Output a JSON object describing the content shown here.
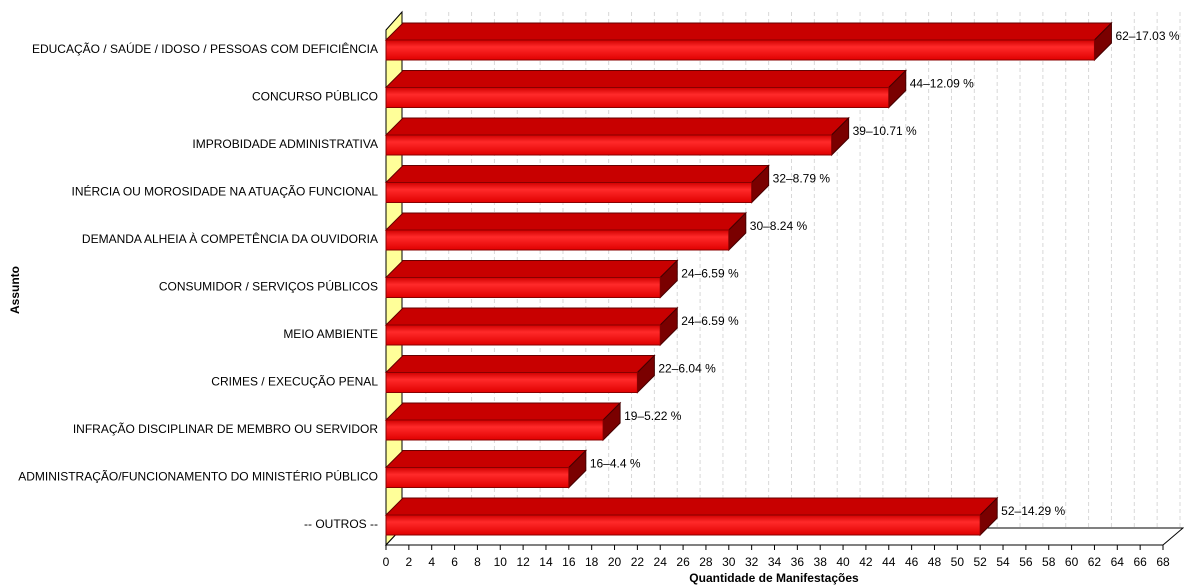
{
  "chart_data": {
    "type": "bar3d-horizontal",
    "y_label": "Assunto",
    "x_label": "Quantidade de Manifestações",
    "categories": [
      "EDUCAÇÃO / SAÚDE / IDOSO / PESSOAS COM DEFICIÊNCIA",
      "CONCURSO PÚBLICO",
      "IMPROBIDADE ADMINISTRATIVA",
      "INÉRCIA OU MOROSIDADE NA ATUAÇÃO FUNCIONAL",
      "DEMANDA ALHEIA À COMPETÊNCIA DA OUVIDORIA",
      "CONSUMIDOR / SERVIÇOS PÚBLICOS",
      "MEIO AMBIENTE",
      "CRIMES / EXECUÇÃO PENAL",
      "INFRAÇÃO DISCIPLINAR DE MEMBRO OU SERVIDOR",
      "ADMINISTRAÇÃO/FUNCIONAMENTO DO MINISTÉRIO PÚBLICO",
      "-- OUTROS --"
    ],
    "values": [
      62,
      44,
      39,
      32,
      30,
      24,
      24,
      22,
      19,
      16,
      52
    ],
    "value_labels": [
      "62–17.03 %",
      "44–12.09 %",
      "39–10.71 %",
      "32–8.79 %",
      "30–8.24 %",
      "24–6.59 %",
      "24–6.59 %",
      "22–6.04 %",
      "19–5.22 %",
      "16–4.4 %",
      "52–14.29 %"
    ],
    "color": "#ff0000",
    "xlim": [
      0,
      68
    ],
    "xticks": [
      0,
      2,
      4,
      6,
      8,
      10,
      12,
      14,
      16,
      18,
      20,
      22,
      24,
      26,
      28,
      30,
      32,
      34,
      36,
      38,
      40,
      42,
      44,
      46,
      48,
      50,
      52,
      54,
      56,
      58,
      60,
      62,
      64,
      66,
      68
    ],
    "grid": true
  }
}
